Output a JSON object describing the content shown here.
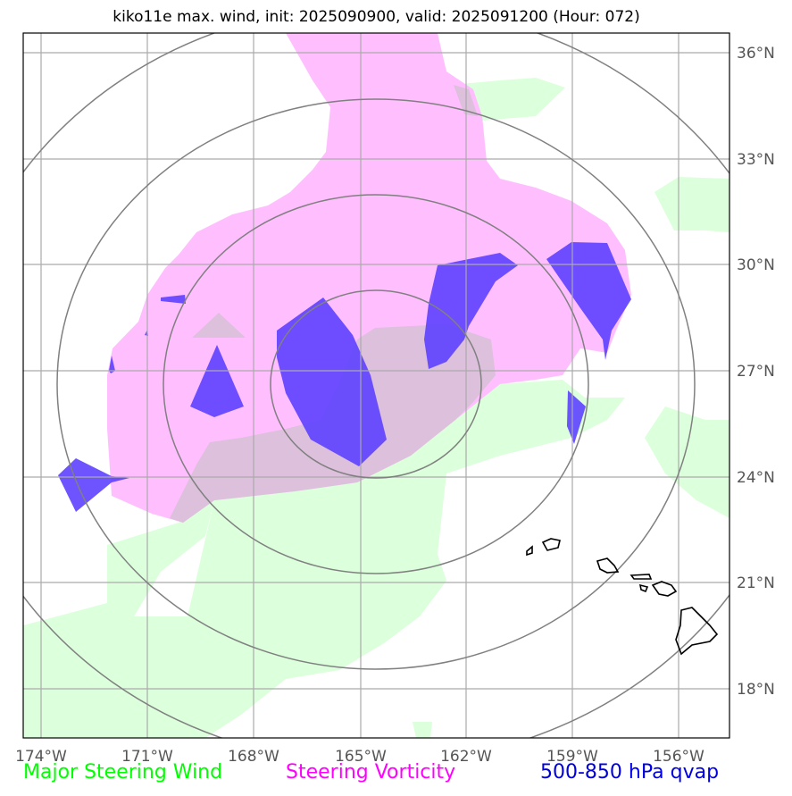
{
  "title": "kiko11e max. wind, init: 2025090900, valid: 2025091200 (Hour: 072)",
  "longitude_ticks": [
    "174°W",
    "171°W",
    "168°W",
    "165°W",
    "162°W",
    "159°W",
    "156°W"
  ],
  "latitude_ticks": [
    "36°N",
    "33°N",
    "30°N",
    "27°N",
    "24°N",
    "21°N",
    "18°N"
  ],
  "legend": [
    {
      "label": "Major Steering Wind",
      "color": "#00ff00"
    },
    {
      "label": "Steering Vorticity",
      "color": "#ff00ff"
    },
    {
      "label": "500-850 hPa qvap",
      "color": "#0000e0"
    }
  ],
  "colors": {
    "steering_wind_fill": "#dcffdc",
    "steering_vorticity_fill": "#ffbfff",
    "overlap_fill": "#dcc0dc",
    "qvap_fill": "#5a3cff",
    "range_ring": "#808080",
    "gridline": "#aaaaaa",
    "coastline": "#000000"
  },
  "features": {
    "range_rings": "concentric distance rings centered near 165°W, 27°N",
    "coastline": "Hawaiian Islands"
  }
}
